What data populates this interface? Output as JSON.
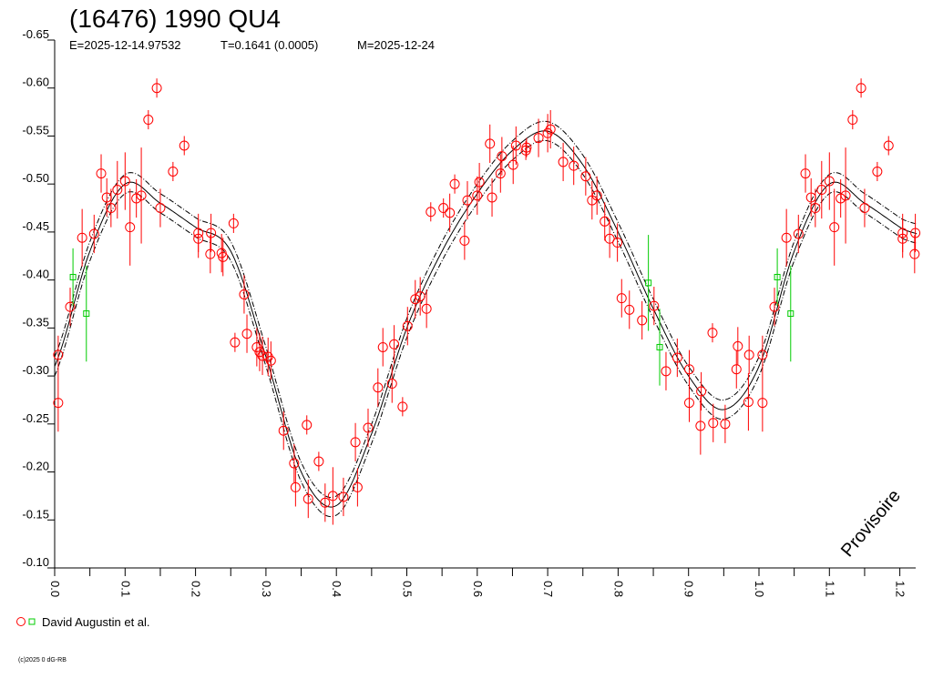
{
  "chart_data": {
    "type": "scatter",
    "title": "(16476) 1990 QU4",
    "subtitle": {
      "epoch": "E=2025-12-14.97532",
      "period": "T=0.1641 (0.0005)",
      "modified": "M=2025-12-24"
    },
    "xlabel": "",
    "ylabel": "",
    "xlim": [
      0,
      1.225
    ],
    "ylim": [
      -0.65,
      -0.1
    ],
    "y_inverted": true,
    "x_ticks": [
      "0.0",
      "0.1",
      "0.2",
      "0.3",
      "0.4",
      "0.5",
      "0.6",
      "0.7",
      "0.8",
      "0.9",
      "1.0",
      "1.1",
      "1.2"
    ],
    "y_ticks": [
      "-0.65",
      "-0.60",
      "-0.55",
      "-0.50",
      "-0.45",
      "-0.40",
      "-0.35",
      "-0.30",
      "-0.25",
      "-0.20",
      "-0.15",
      "-0.10"
    ],
    "watermark": "Provisoire",
    "legend": {
      "label": "David Augustin et al.",
      "placement": "bottom-left"
    },
    "copyright": "(c)2025 0 dG-RB",
    "repeat_phase_above_1": true,
    "colors": {
      "series_red": "#ff0000",
      "series_green": "#00cc00",
      "fit": "#000000"
    },
    "series": [
      {
        "name": "red-circles",
        "marker": "circle",
        "color": "#ff0000",
        "points": [
          [
            0.005,
            -0.272,
            0.03
          ],
          [
            0.005,
            -0.322,
            0.02
          ],
          [
            0.022,
            -0.372,
            0.02
          ],
          [
            0.039,
            -0.444,
            0.03
          ],
          [
            0.056,
            -0.448,
            0.02
          ],
          [
            0.066,
            -0.511,
            0.02
          ],
          [
            0.074,
            -0.486,
            0.02
          ],
          [
            0.08,
            -0.475,
            0.02
          ],
          [
            0.089,
            -0.494,
            0.03
          ],
          [
            0.1,
            -0.503,
            0.03
          ],
          [
            0.107,
            -0.455,
            0.04
          ],
          [
            0.116,
            -0.485,
            0.02
          ],
          [
            0.123,
            -0.488,
            0.05
          ],
          [
            0.133,
            -0.567,
            0.01
          ],
          [
            0.145,
            -0.6,
            0.01
          ],
          [
            0.15,
            -0.475,
            0.02
          ],
          [
            0.168,
            -0.513,
            0.01
          ],
          [
            0.184,
            -0.54,
            0.01
          ],
          [
            0.204,
            -0.449,
            0.02
          ],
          [
            0.204,
            -0.443,
            0.02
          ],
          [
            0.221,
            -0.427,
            0.02
          ],
          [
            0.222,
            -0.449,
            0.02
          ],
          [
            0.237,
            -0.428,
            0.02
          ],
          [
            0.239,
            -0.424,
            0.02
          ],
          [
            0.254,
            -0.459,
            0.01
          ],
          [
            0.256,
            -0.335,
            0.01
          ],
          [
            0.269,
            -0.385,
            0.02
          ],
          [
            0.273,
            -0.344,
            0.02
          ],
          [
            0.287,
            -0.33,
            0.02
          ],
          [
            0.291,
            -0.325,
            0.02
          ],
          [
            0.295,
            -0.321,
            0.02
          ],
          [
            0.303,
            -0.32,
            0.02
          ],
          [
            0.307,
            -0.316,
            0.02
          ],
          [
            0.325,
            -0.243,
            0.02
          ],
          [
            0.34,
            -0.209,
            0.02
          ],
          [
            0.342,
            -0.184,
            0.02
          ],
          [
            0.358,
            -0.249,
            0.01
          ],
          [
            0.36,
            -0.172,
            0.02
          ],
          [
            0.375,
            -0.211,
            0.01
          ],
          [
            0.384,
            -0.168,
            0.02
          ],
          [
            0.395,
            -0.175,
            0.03
          ],
          [
            0.41,
            -0.174,
            0.02
          ],
          [
            0.427,
            -0.231,
            0.02
          ],
          [
            0.43,
            -0.184,
            0.02
          ],
          [
            0.445,
            -0.246,
            0.02
          ],
          [
            0.459,
            -0.288,
            0.02
          ],
          [
            0.466,
            -0.33,
            0.02
          ],
          [
            0.479,
            -0.292,
            0.02
          ],
          [
            0.482,
            -0.333,
            0.02
          ],
          [
            0.494,
            -0.268,
            0.01
          ],
          [
            0.501,
            -0.352,
            0.02
          ],
          [
            0.512,
            -0.38,
            0.02
          ],
          [
            0.519,
            -0.383,
            0.02
          ],
          [
            0.528,
            -0.37,
            0.02
          ],
          [
            0.534,
            -0.471,
            0.01
          ],
          [
            0.552,
            -0.475,
            0.01
          ],
          [
            0.561,
            -0.47,
            0.02
          ],
          [
            0.568,
            -0.5,
            0.01
          ],
          [
            0.582,
            -0.441,
            0.02
          ],
          [
            0.586,
            -0.483,
            0.02
          ],
          [
            0.6,
            -0.488,
            0.02
          ],
          [
            0.603,
            -0.502,
            0.02
          ],
          [
            0.618,
            -0.542,
            0.02
          ],
          [
            0.621,
            -0.486,
            0.02
          ],
          [
            0.633,
            -0.511,
            0.02
          ],
          [
            0.635,
            -0.529,
            0.02
          ],
          [
            0.651,
            -0.52,
            0.02
          ],
          [
            0.655,
            -0.54,
            0.02
          ],
          [
            0.669,
            -0.535,
            0.01
          ],
          [
            0.67,
            -0.538,
            0.01
          ],
          [
            0.687,
            -0.548,
            0.02
          ],
          [
            0.7,
            -0.553,
            0.02
          ],
          [
            0.704,
            -0.557,
            0.02
          ],
          [
            0.722,
            -0.523,
            0.02
          ],
          [
            0.737,
            -0.519,
            0.02
          ],
          [
            0.754,
            -0.508,
            0.02
          ],
          [
            0.763,
            -0.483,
            0.02
          ],
          [
            0.77,
            -0.488,
            0.02
          ],
          [
            0.781,
            -0.461,
            0.02
          ],
          [
            0.788,
            -0.443,
            0.02
          ],
          [
            0.799,
            -0.439,
            0.02
          ],
          [
            0.805,
            -0.381,
            0.02
          ],
          [
            0.816,
            -0.369,
            0.02
          ],
          [
            0.834,
            -0.358,
            0.02
          ],
          [
            0.851,
            -0.373,
            0.02
          ],
          [
            0.868,
            -0.305,
            0.02
          ],
          [
            0.884,
            -0.319,
            0.02
          ],
          [
            0.901,
            -0.307,
            0.02
          ],
          [
            0.901,
            -0.272,
            0.02
          ],
          [
            0.917,
            -0.248,
            0.03
          ],
          [
            0.918,
            -0.284,
            0.02
          ],
          [
            0.934,
            -0.345,
            0.01
          ],
          [
            0.935,
            -0.251,
            0.02
          ],
          [
            0.952,
            -0.25,
            0.02
          ],
          [
            0.968,
            -0.307,
            0.02
          ],
          [
            0.97,
            -0.331,
            0.02
          ],
          [
            0.985,
            -0.273,
            0.03
          ],
          [
            0.986,
            -0.322,
            0.02
          ]
        ]
      },
      {
        "name": "green-squares",
        "marker": "square",
        "color": "#00cc00",
        "points": [
          [
            0.026,
            -0.403,
            0.03
          ],
          [
            0.045,
            -0.365,
            0.05
          ],
          [
            0.843,
            -0.397,
            0.05
          ],
          [
            0.859,
            -0.33,
            0.04
          ]
        ]
      }
    ],
    "fit_curve": {
      "phase": [
        0,
        0.05,
        0.1,
        0.15,
        0.2,
        0.25,
        0.3,
        0.35,
        0.4,
        0.45,
        0.5,
        0.55,
        0.6,
        0.65,
        0.7,
        0.75,
        0.8,
        0.85,
        0.9,
        0.95,
        1.0
      ],
      "mag": [
        -0.31,
        -0.43,
        -0.5,
        -0.48,
        -0.455,
        -0.43,
        -0.32,
        -0.2,
        -0.165,
        -0.24,
        -0.35,
        -0.43,
        -0.49,
        -0.535,
        -0.555,
        -0.52,
        -0.45,
        -0.37,
        -0.3,
        -0.265,
        -0.31
      ],
      "envelope": 0.01
    }
  }
}
